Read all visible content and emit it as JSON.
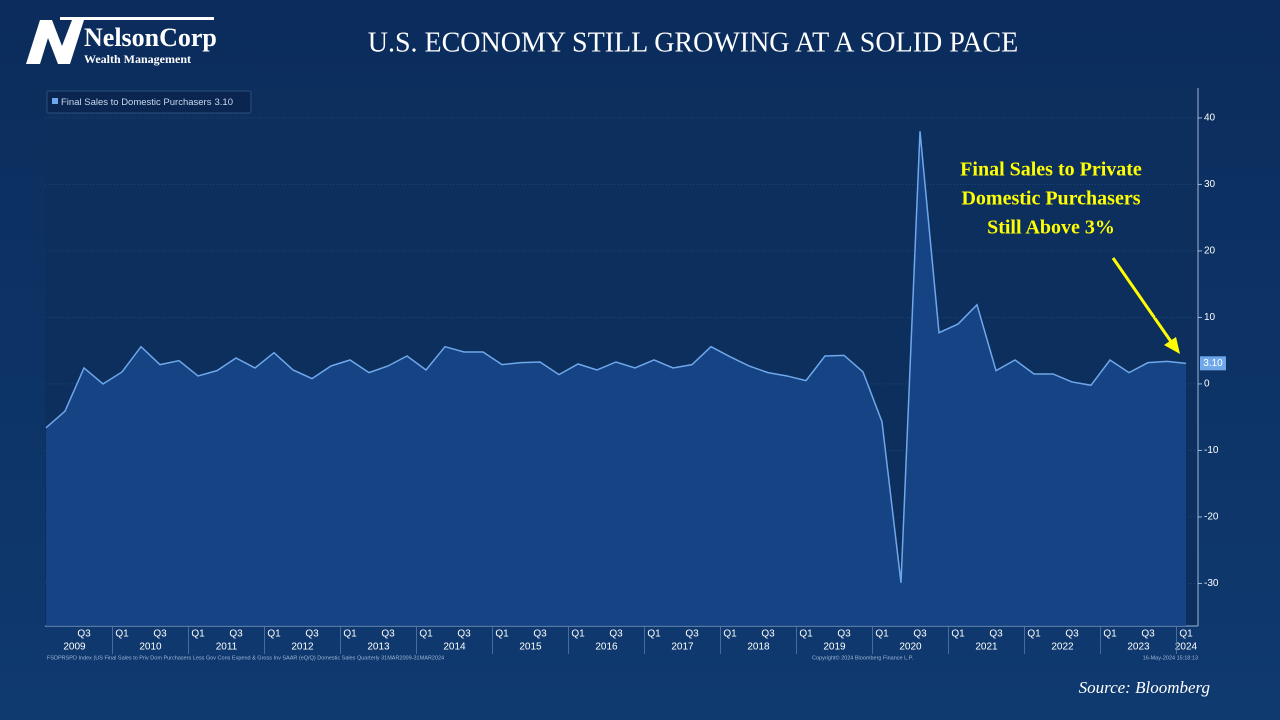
{
  "logo": {
    "name": "NelsonCorp",
    "tagline": "Wealth Management"
  },
  "chart_data": {
    "type": "area-line",
    "title": "U.S. ECONOMY STILL GROWING AT A SOLID PACE",
    "categories": [
      null,
      null,
      "Q3",
      null,
      "Q1",
      null,
      "Q3",
      null,
      "Q1",
      null,
      "Q3",
      null,
      "Q1",
      null,
      "Q3",
      null,
      "Q1",
      null,
      "Q3",
      null,
      "Q1",
      null,
      "Q3",
      null,
      "Q1",
      null,
      "Q3",
      null,
      "Q1",
      null,
      "Q3",
      null,
      "Q1",
      null,
      "Q3",
      null,
      "Q1",
      null,
      "Q3",
      null,
      "Q1",
      null,
      "Q3",
      null,
      "Q1",
      null,
      "Q3",
      null,
      "Q1",
      null,
      "Q3",
      null,
      "Q1",
      null,
      "Q3",
      null,
      "Q1",
      null,
      "Q3",
      null,
      "Q1"
    ],
    "years": [
      "2009",
      "2010",
      "2011",
      "2012",
      "2013",
      "2014",
      "2015",
      "2016",
      "2017",
      "2018",
      "2019",
      "2020",
      "2021",
      "2022",
      "2023",
      "2024"
    ],
    "series": [
      {
        "name": "Final Sales to Domestic Purchasers",
        "color": "#6ea8ea",
        "values": [
          -6.6,
          -4.1,
          2.4,
          0,
          1.8,
          5.6,
          2.9,
          3.5,
          1.2,
          2.0,
          3.9,
          2.4,
          4.7,
          2.1,
          0.8,
          2.7,
          3.6,
          1.7,
          2.7,
          4.2,
          2.1,
          5.6,
          4.8,
          4.8,
          2.9,
          3.2,
          3.3,
          1.4,
          3.0,
          2.1,
          3.3,
          2.4,
          3.6,
          2.4,
          2.9,
          5.6,
          4.1,
          2.7,
          1.7,
          1.2,
          0.5,
          4.2,
          4.3,
          1.8,
          -5.7,
          -29.9,
          38.0,
          7.7,
          9.0,
          11.9,
          2.0,
          3.6,
          1.5,
          1.5,
          0.3,
          -0.2,
          3.6,
          1.7,
          3.2,
          3.4,
          3.1
        ],
        "value_labels": [
          null,
          null,
          null,
          null,
          null,
          null,
          null,
          null,
          null,
          null,
          null,
          null,
          null,
          null,
          null,
          null,
          null,
          null,
          null,
          null,
          null,
          null,
          null,
          null,
          null,
          null,
          null,
          null,
          null,
          null,
          null,
          null,
          null,
          null,
          null,
          null,
          null,
          null,
          null,
          null,
          null,
          null,
          null,
          null,
          null,
          null,
          null,
          null,
          null,
          null,
          null,
          null,
          null,
          null,
          null,
          null,
          null,
          null,
          null,
          null,
          "3.10"
        ]
      }
    ],
    "ylim": [
      -36.4,
      44.5
    ],
    "yticks": [
      -30,
      -20,
      -10,
      0,
      10,
      20,
      30,
      40
    ],
    "grid": true,
    "annotation": [
      "Final Sales to Private",
      "Domestic Purchasers",
      "Still Above 3%"
    ],
    "footnote": "FSDPRSPD Index (US Final Sales to Priv Dom Purchasers Less Gov Cons Expend & Gross Inv SAAR (eQ/Q) Domestic Sales  Quarterly 31MAR2009-31MAR2024",
    "copyright": "Copyright© 2024 Bloomberg Finance L.P.",
    "timestamp": "16-May-2024 15:18:13",
    "source": "Source: Bloomberg"
  }
}
